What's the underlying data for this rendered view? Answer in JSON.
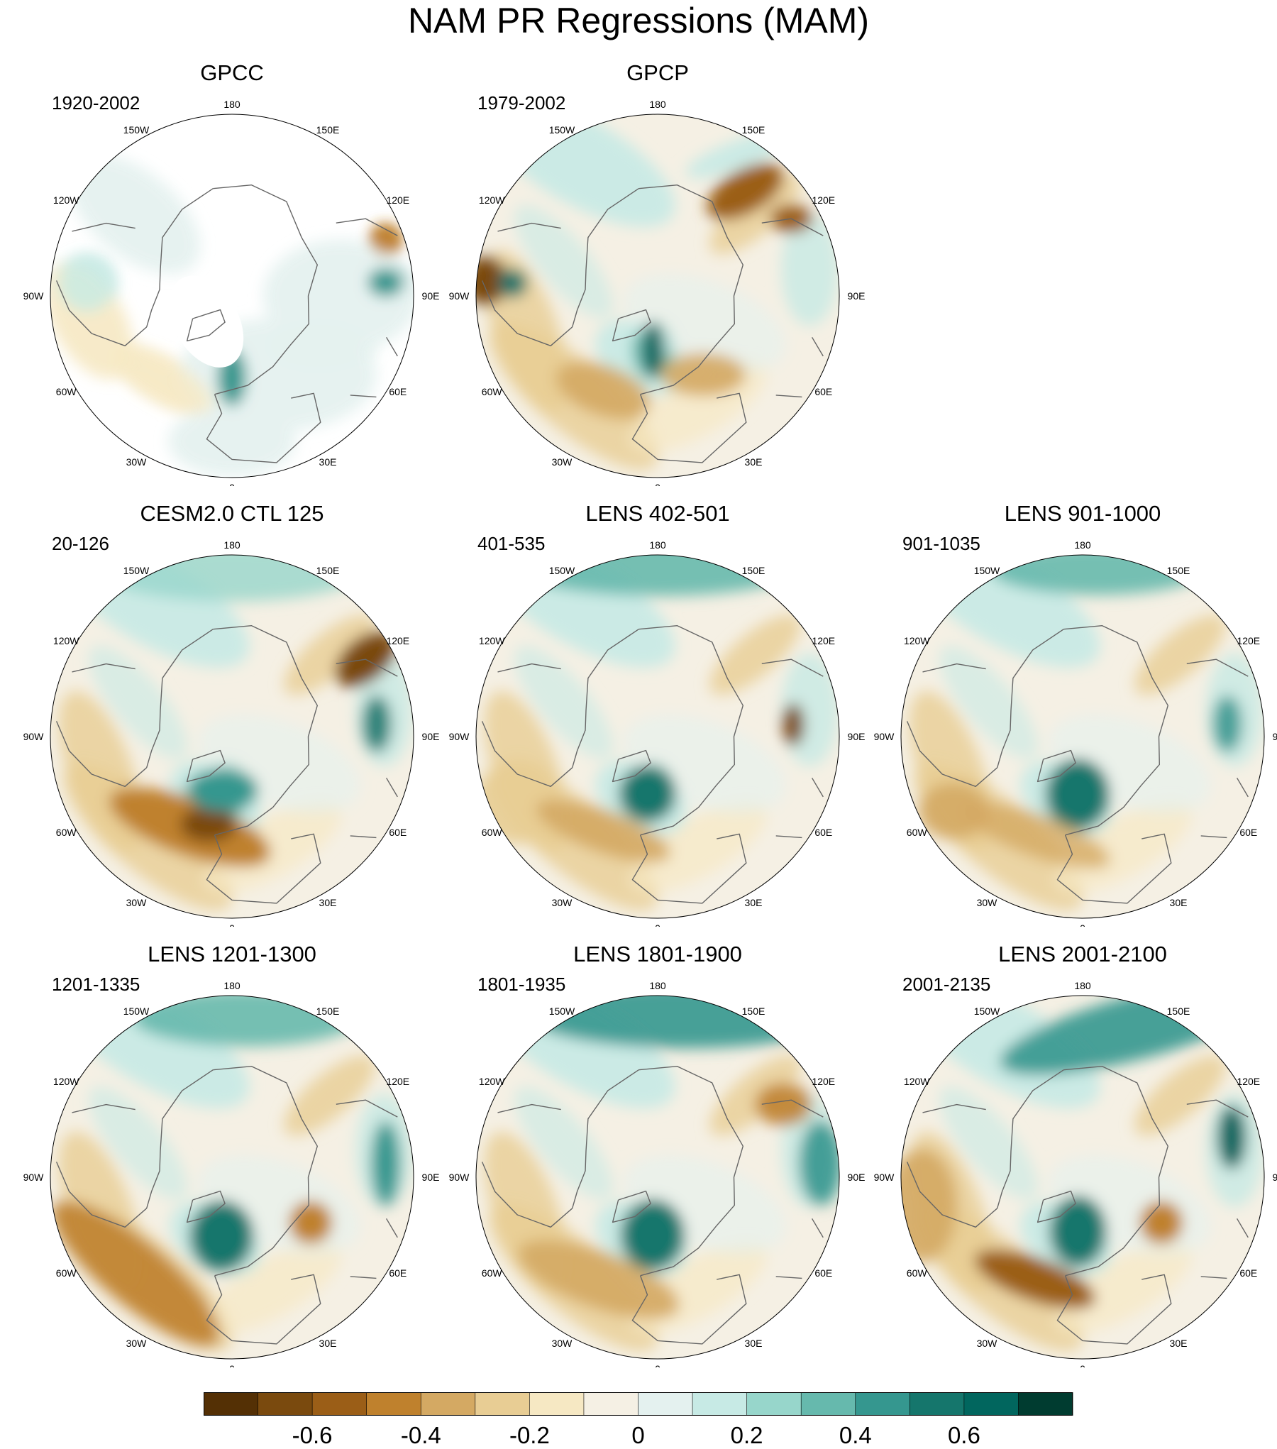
{
  "title": "NAM PR Regressions (MAM)",
  "lon_labels": [
    "180",
    "150E",
    "120E",
    "90E",
    "60E",
    "30E",
    "0",
    "30W",
    "60W",
    "90W",
    "120W",
    "150W"
  ],
  "panels": [
    {
      "id": "gpcc",
      "title": "GPCC",
      "period": "1920-2002",
      "row": 0,
      "col": 0,
      "variant": "gpcc"
    },
    {
      "id": "gpcp",
      "title": "GPCP",
      "period": "1979-2002",
      "row": 0,
      "col": 1,
      "variant": "gpcp"
    },
    {
      "id": "cesm",
      "title": "CESM2.0 CTL 125",
      "period": "20-126",
      "row": 1,
      "col": 0,
      "variant": "cesm"
    },
    {
      "id": "lens402",
      "title": "LENS 402-501",
      "period": "401-535",
      "row": 1,
      "col": 1,
      "variant": "lens402"
    },
    {
      "id": "lens901",
      "title": "LENS 901-1000",
      "period": "901-1035",
      "row": 1,
      "col": 2,
      "variant": "lens901"
    },
    {
      "id": "lens1201",
      "title": "LENS 1201-1300",
      "period": "1201-1335",
      "row": 2,
      "col": 0,
      "variant": "lens1201"
    },
    {
      "id": "lens1801",
      "title": "LENS 1801-1900",
      "period": "1801-1935",
      "row": 2,
      "col": 1,
      "variant": "lens1801"
    },
    {
      "id": "lens2001",
      "title": "LENS 2001-2100",
      "period": "2001-2135",
      "row": 2,
      "col": 2,
      "variant": "lens2001"
    }
  ],
  "colorbar": {
    "colors": [
      "#543005",
      "#7a4a0e",
      "#9b5e17",
      "#bf812d",
      "#d4a963",
      "#e8cd94",
      "#f6e8c3",
      "#f5f0e4",
      "#e4f1ef",
      "#c7eae5",
      "#97d6cb",
      "#66b9ad",
      "#35978f",
      "#15766c",
      "#01665e",
      "#003c30"
    ],
    "tick_labels": [
      "-0.6",
      "-0.4",
      "-0.2",
      "0",
      "0.2",
      "0.4",
      "0.6"
    ],
    "tick_values": [
      -0.6,
      -0.4,
      -0.2,
      0,
      0.2,
      0.4,
      0.6
    ],
    "levels": [
      -0.7,
      -0.6,
      -0.5,
      -0.4,
      -0.3,
      -0.2,
      -0.1,
      0,
      0.1,
      0.2,
      0.3,
      0.4,
      0.5,
      0.6,
      0.7
    ]
  }
}
